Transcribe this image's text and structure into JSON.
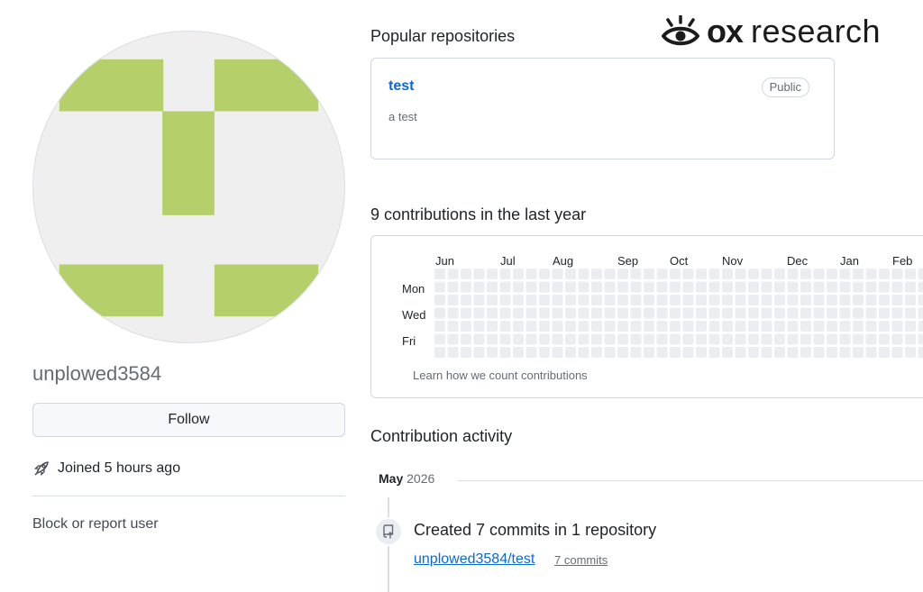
{
  "profile": {
    "username": "unplowed3584",
    "follow_label": "Follow",
    "joined_text": "Joined 5 hours ago",
    "block_label": "Block or report user",
    "avatar_color": "#b5cf6a"
  },
  "brand": {
    "name_bold": "ox",
    "name_light": "research"
  },
  "popular": {
    "title": "Popular repositories",
    "repos": [
      {
        "name": "test",
        "visibility": "Public",
        "description": "a test"
      }
    ]
  },
  "contributions": {
    "title": "9 contributions in the last year",
    "months": [
      "Jun",
      "Jul",
      "Aug",
      "Sep",
      "Oct",
      "Nov",
      "Dec",
      "Jan",
      "Feb"
    ],
    "days": [
      "Mon",
      "Wed",
      "Fri"
    ],
    "learn_label": "Learn how we count contributions",
    "empty_cell_color": "#ebedf0"
  },
  "activity": {
    "title": "Contribution activity",
    "month": "May",
    "year": "2026",
    "headline": "Created 7 commits in 1 repository",
    "repo": "unplowed3584/test",
    "commits": "7 commits"
  }
}
